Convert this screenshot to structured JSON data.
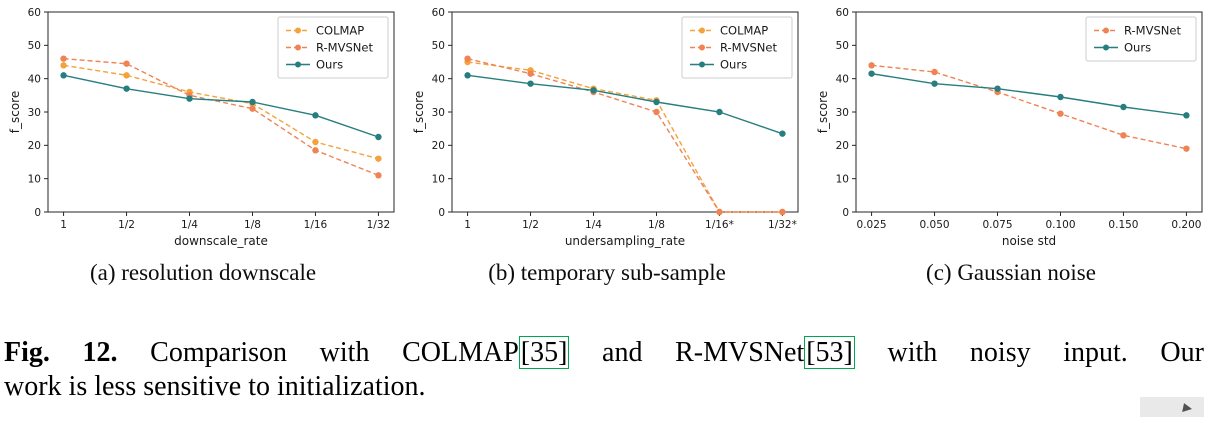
{
  "figure": {
    "subcaptions": [
      "(a) resolution downscale",
      "(b) temporary sub-sample",
      "(c) Gaussian noise"
    ],
    "caption": {
      "label": "Fig. 12.",
      "part1": " Comparison with COLMAP",
      "cite1": "[35]",
      "part2": " and R-MVSNet",
      "cite2": "[53]",
      "part3": " with noisy input. Our",
      "line2": "work is less sensitive to initialization."
    }
  },
  "colors": {
    "colmap": "#F2A33C",
    "rmvsnet": "#EF8354",
    "ours": "#267E7E",
    "cite_box": "#00A550"
  },
  "chart_data": [
    {
      "type": "line",
      "title": "",
      "xlabel": "downscale_rate",
      "ylabel": "f_score",
      "ylim": [
        0,
        60
      ],
      "yticks": [
        0,
        10,
        20,
        30,
        40,
        50,
        60
      ],
      "grid": false,
      "legend_position": "upper right",
      "categories": [
        "1",
        "1/2",
        "1/4",
        "1/8",
        "1/16",
        "1/32"
      ],
      "series": [
        {
          "name": "COLMAP",
          "color": "#F2A33C",
          "dash": true,
          "values": [
            44,
            41,
            36,
            32.5,
            21,
            16
          ]
        },
        {
          "name": "R-MVSNet",
          "color": "#EF8354",
          "dash": true,
          "values": [
            46,
            44.5,
            35,
            31,
            18.5,
            11
          ]
        },
        {
          "name": "Ours",
          "color": "#267E7E",
          "dash": false,
          "values": [
            41,
            37,
            34,
            33,
            29,
            22.5
          ]
        }
      ]
    },
    {
      "type": "line",
      "title": "",
      "xlabel": "undersampling_rate",
      "ylabel": "f_score",
      "ylim": [
        0,
        60
      ],
      "yticks": [
        0,
        10,
        20,
        30,
        40,
        50,
        60
      ],
      "grid": false,
      "legend_position": "upper right",
      "categories": [
        "1",
        "1/2",
        "1/4",
        "1/8",
        "1/16*",
        "1/32*"
      ],
      "series": [
        {
          "name": "COLMAP",
          "color": "#F2A33C",
          "dash": true,
          "values": [
            45,
            42.5,
            37,
            33.5,
            0,
            0
          ]
        },
        {
          "name": "R-MVSNet",
          "color": "#EF8354",
          "dash": true,
          "values": [
            46,
            41.5,
            36,
            30,
            0,
            0
          ]
        },
        {
          "name": "Ours",
          "color": "#267E7E",
          "dash": false,
          "values": [
            41,
            38.5,
            36.5,
            33,
            30,
            23.5
          ]
        }
      ]
    },
    {
      "type": "line",
      "title": "",
      "xlabel": "noise std",
      "ylabel": "f_score",
      "ylim": [
        0,
        60
      ],
      "yticks": [
        0,
        10,
        20,
        30,
        40,
        50,
        60
      ],
      "grid": false,
      "legend_position": "upper right",
      "categories": [
        "0.025",
        "0.050",
        "0.075",
        "0.100",
        "0.150",
        "0.200"
      ],
      "series": [
        {
          "name": "R-MVSNet",
          "color": "#EF8354",
          "dash": true,
          "values": [
            44,
            42,
            36,
            29.5,
            23,
            19
          ]
        },
        {
          "name": "Ours",
          "color": "#267E7E",
          "dash": false,
          "values": [
            41.5,
            38.5,
            37,
            34.5,
            31.5,
            29
          ]
        }
      ]
    }
  ]
}
